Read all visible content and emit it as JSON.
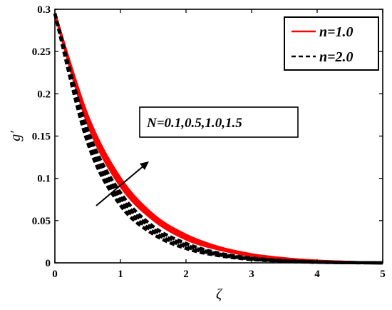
{
  "chart_data": {
    "type": "line",
    "xlabel": "ζ",
    "ylabel": "g′",
    "xlim": [
      0,
      5
    ],
    "ylim": [
      0,
      0.3
    ],
    "xticks": [
      "0",
      "1",
      "2",
      "3",
      "4",
      "5"
    ],
    "yticks": [
      "0",
      "0.05",
      "0.1",
      "0.15",
      "0.2",
      "0.25",
      "0.3"
    ],
    "grid": false,
    "legend": {
      "placement": "top-right",
      "entries": [
        "n=1.0",
        "n=2.0"
      ]
    },
    "annotation": "N=0.1,0.5,1.0,1.5",
    "colors": {
      "n1": "#ff0000",
      "n2": "#000000"
    },
    "series": [
      {
        "name": "n=1.0",
        "N": 0.1,
        "style": "solid",
        "x": [
          0,
          0.5,
          1,
          1.5,
          2,
          2.5,
          3,
          3.5,
          4,
          4.5,
          5
        ],
        "y": [
          0.295,
          0.165,
          0.091,
          0.051,
          0.028,
          0.016,
          0.0085,
          0.0045,
          0.002,
          0.0007,
          0
        ]
      },
      {
        "name": "n=1.0",
        "N": 0.5,
        "style": "solid",
        "x": [
          0,
          0.5,
          1,
          1.5,
          2,
          2.5,
          3,
          3.5,
          4,
          4.5,
          5
        ],
        "y": [
          0.295,
          0.168,
          0.094,
          0.053,
          0.029,
          0.0165,
          0.009,
          0.0047,
          0.0021,
          0.0008,
          0
        ]
      },
      {
        "name": "n=1.0",
        "N": 1.0,
        "style": "solid",
        "x": [
          0,
          0.5,
          1,
          1.5,
          2,
          2.5,
          3,
          3.5,
          4,
          4.5,
          5
        ],
        "y": [
          0.295,
          0.171,
          0.097,
          0.055,
          0.031,
          0.0175,
          0.0095,
          0.005,
          0.0022,
          0.0008,
          0
        ]
      },
      {
        "name": "n=1.0",
        "N": 1.5,
        "style": "solid",
        "x": [
          0,
          0.5,
          1,
          1.5,
          2,
          2.5,
          3,
          3.5,
          4,
          4.5,
          5
        ],
        "y": [
          0.295,
          0.174,
          0.1,
          0.057,
          0.033,
          0.0185,
          0.01,
          0.0053,
          0.0024,
          0.0009,
          0
        ]
      },
      {
        "name": "n=2.0",
        "N": 0.1,
        "style": "dashed",
        "x": [
          0,
          0.5,
          1,
          1.5,
          2,
          2.5,
          3,
          3.5,
          4,
          4.5,
          5
        ],
        "y": [
          0.295,
          0.142,
          0.068,
          0.034,
          0.017,
          0.0085,
          0.004,
          0.0018,
          0.0007,
          0.0002,
          0
        ]
      },
      {
        "name": "n=2.0",
        "N": 0.5,
        "style": "dashed",
        "x": [
          0,
          0.5,
          1,
          1.5,
          2,
          2.5,
          3,
          3.5,
          4,
          4.5,
          5
        ],
        "y": [
          0.295,
          0.147,
          0.073,
          0.037,
          0.019,
          0.0095,
          0.0046,
          0.0021,
          0.0008,
          0.0003,
          0
        ]
      },
      {
        "name": "n=2.0",
        "N": 1.0,
        "style": "dashed",
        "x": [
          0,
          0.5,
          1,
          1.5,
          2,
          2.5,
          3,
          3.5,
          4,
          4.5,
          5
        ],
        "y": [
          0.295,
          0.152,
          0.078,
          0.04,
          0.021,
          0.0105,
          0.0052,
          0.0024,
          0.001,
          0.0003,
          0
        ]
      },
      {
        "name": "n=2.0",
        "N": 1.5,
        "style": "dashed",
        "x": [
          0,
          0.5,
          1,
          1.5,
          2,
          2.5,
          3,
          3.5,
          4,
          4.5,
          5
        ],
        "y": [
          0.295,
          0.157,
          0.083,
          0.043,
          0.023,
          0.0115,
          0.0058,
          0.0027,
          0.0011,
          0.0004,
          0
        ]
      }
    ]
  }
}
